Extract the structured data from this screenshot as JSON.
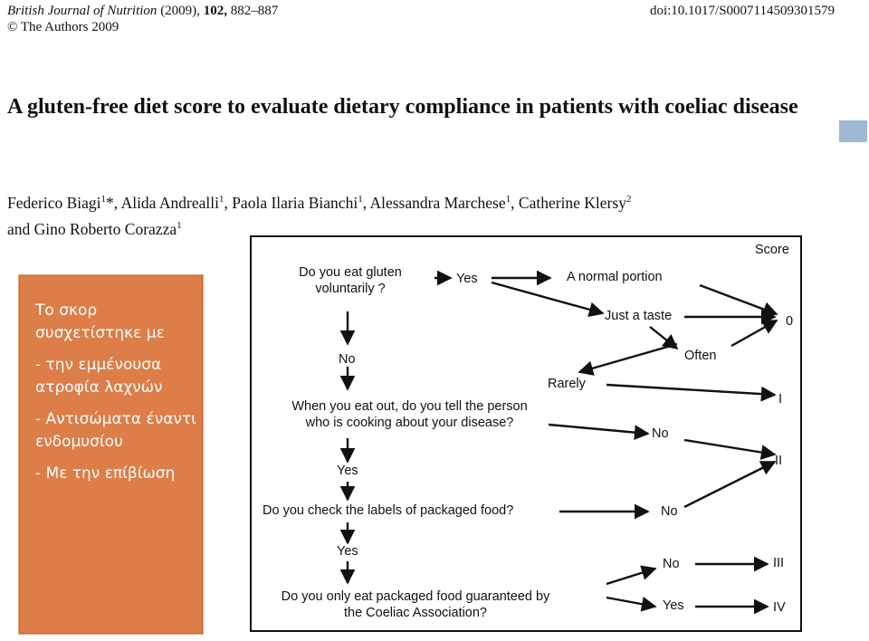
{
  "header": {
    "journal": "British Journal of Nutrition",
    "year": "(2009),",
    "volume": "102,",
    "pages": "882–887",
    "copyright": "© The Authors 2009",
    "doi": "doi:10.1017/S0007114509301579"
  },
  "paper": {
    "title": "A gluten-free diet score to evaluate dietary compliance in patients with coeliac disease",
    "authors": [
      {
        "name": "Federico Biagi",
        "aff": "1",
        "mark": "*"
      },
      {
        "name": "Alida Andrealli",
        "aff": "1"
      },
      {
        "name": "Paola Ilaria Bianchi",
        "aff": "1"
      },
      {
        "name": "Alessandra Marchese",
        "aff": "1"
      },
      {
        "name": "Catherine Klersy",
        "aff": "2"
      },
      {
        "name": "Gino Roberto Corazza",
        "aff": "1"
      }
    ],
    "and_word": "and"
  },
  "note": {
    "lines": [
      "Το σκορ συσχετίστηκε με",
      "- την εμμένουσα ατροφία λαχνών",
      "- Αντισώματα έναντι ενδομυσίου",
      "- Με την επίβίωση"
    ],
    "background": "#dd7d48"
  },
  "flowchart": {
    "score_header": "Score",
    "q1_line1": "Do you eat gluten",
    "q1_line2": "voluntarily ?",
    "yes1": "Yes",
    "normal_portion": "A normal portion",
    "just_taste": "Just a taste",
    "often": "Often",
    "rarely": "Rarely",
    "no1": "No",
    "q2_line1": "When you eat out, do you tell the person",
    "q2_line2": "who is cooking about your disease?",
    "no2": "No",
    "yes2": "Yes",
    "q3": "Do you check the labels of packaged food?",
    "no3": "No",
    "yes3": "Yes",
    "no4": "No",
    "q4_line1": "Do you only eat packaged food guaranteed by",
    "q4_line2": "the Coeliac Association?",
    "yes4": "Yes",
    "score0": "0",
    "scoreI": "I",
    "scoreII": "II",
    "scoreIII": "III",
    "scoreIV": "IV"
  }
}
